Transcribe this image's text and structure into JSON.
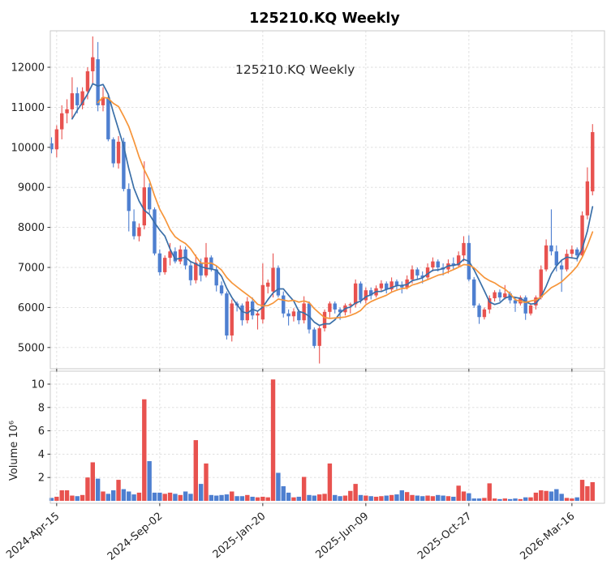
{
  "title": "125210.KQ  Weekly",
  "inner_label": "125210.KQ  Weekly",
  "colors": {
    "up_candle": "#e8524f",
    "down_candle": "#4e7fd0",
    "ma_fast": "#3a6fa8",
    "ma_slow": "#f6953a",
    "grid": "#dcdcdc",
    "spine": "#c9c9c9",
    "text": "#1f1f1f"
  },
  "chart_data": {
    "type": "candlestick",
    "title": "125210.KQ  Weekly",
    "panels": [
      "price",
      "volume"
    ],
    "price_axis": {
      "ticks": [
        5000,
        6000,
        7000,
        8000,
        9000,
        10000,
        11000,
        12000
      ],
      "range_est": [
        4470,
        12900
      ],
      "grid": true
    },
    "volume_axis": {
      "label": "Volume  10⁶",
      "ticks": [
        2,
        4,
        6,
        8,
        10
      ],
      "unit": "millions",
      "range_est": [
        0,
        11.3
      ],
      "grid": true
    },
    "x_ticks": [
      {
        "label": "2024-Apr-15",
        "index": 1
      },
      {
        "label": "2024-Sep-02",
        "index": 21
      },
      {
        "label": "2025-Jan-20",
        "index": 41
      },
      {
        "label": "2025-Jun-09",
        "index": 61
      },
      {
        "label": "2025-Oct-27",
        "index": 81
      },
      {
        "label": "2026-Mar-16",
        "index": 101
      }
    ],
    "overlays": [
      {
        "name": "ma-fast",
        "period": 5,
        "color_key": "ma_fast"
      },
      {
        "name": "ma-slow",
        "period": 10,
        "color_key": "ma_slow"
      }
    ],
    "ohlcv_columns": [
      "open",
      "high",
      "low",
      "close",
      "volume_millions"
    ],
    "candles": [
      [
        10100,
        10250,
        9850,
        9950,
        0.25
      ],
      [
        9950,
        10550,
        9750,
        10450,
        0.35
      ],
      [
        10450,
        11050,
        10200,
        10850,
        0.9
      ],
      [
        10850,
        11200,
        10600,
        10950,
        0.9
      ],
      [
        10950,
        11750,
        10700,
        11350,
        0.45
      ],
      [
        11350,
        11500,
        10850,
        11050,
        0.4
      ],
      [
        11050,
        11500,
        10950,
        11400,
        0.5
      ],
      [
        11400,
        12000,
        11200,
        11900,
        2.0
      ],
      [
        11900,
        12770,
        11600,
        12250,
        3.3
      ],
      [
        12200,
        12630,
        10900,
        11050,
        1.9
      ],
      [
        11050,
        11500,
        10900,
        11250,
        0.8
      ],
      [
        11250,
        11300,
        10150,
        10200,
        0.6
      ],
      [
        10200,
        10250,
        9500,
        9600,
        0.9
      ],
      [
        9600,
        10280,
        9470,
        10140,
        1.8
      ],
      [
        10140,
        10240,
        8900,
        8960,
        1.0
      ],
      [
        8960,
        9100,
        7900,
        8410,
        0.8
      ],
      [
        8150,
        8450,
        7700,
        7780,
        0.55
      ],
      [
        7780,
        8100,
        7650,
        8000,
        0.7
      ],
      [
        8050,
        9650,
        7950,
        9000,
        8.7
      ],
      [
        9000,
        9100,
        8350,
        8450,
        3.4
      ],
      [
        8450,
        8500,
        7300,
        7350,
        0.7
      ],
      [
        7350,
        7450,
        6800,
        6880,
        0.7
      ],
      [
        6880,
        7300,
        6820,
        7240,
        0.6
      ],
      [
        7240,
        7610,
        7050,
        7400,
        0.7
      ],
      [
        7400,
        7500,
        7100,
        7150,
        0.6
      ],
      [
        7150,
        7550,
        7080,
        7450,
        0.5
      ],
      [
        7450,
        7520,
        6950,
        7050,
        0.8
      ],
      [
        7050,
        7150,
        6550,
        6680,
        0.6
      ],
      [
        6680,
        7320,
        6600,
        7120,
        5.2
      ],
      [
        7120,
        7220,
        6650,
        6800,
        1.45
      ],
      [
        6800,
        7610,
        6750,
        7250,
        3.2
      ],
      [
        7250,
        7300,
        6900,
        6950,
        0.5
      ],
      [
        6950,
        7050,
        6400,
        6550,
        0.45
      ],
      [
        6550,
        6650,
        6300,
        6350,
        0.5
      ],
      [
        6350,
        6400,
        5200,
        5300,
        0.55
      ],
      [
        5300,
        6200,
        5150,
        6100,
        0.8
      ],
      [
        6100,
        6150,
        5900,
        6050,
        0.4
      ],
      [
        6050,
        6100,
        5550,
        5680,
        0.4
      ],
      [
        5680,
        6260,
        5600,
        6150,
        0.5
      ],
      [
        6150,
        6250,
        5700,
        5800,
        0.35
      ],
      [
        5800,
        5900,
        5450,
        5850,
        0.3
      ],
      [
        5700,
        7100,
        5600,
        6560,
        0.35
      ],
      [
        6520,
        6700,
        6350,
        6620,
        0.3
      ],
      [
        6400,
        7350,
        6250,
        6990,
        10.4
      ],
      [
        6990,
        7050,
        6250,
        6300,
        2.4
      ],
      [
        6300,
        6400,
        5750,
        5850,
        1.25
      ],
      [
        5850,
        5950,
        5550,
        5780,
        0.7
      ],
      [
        5780,
        5980,
        5650,
        5900,
        0.3
      ],
      [
        5900,
        5950,
        5580,
        5680,
        0.35
      ],
      [
        5680,
        6280,
        5600,
        6100,
        2.05
      ],
      [
        6100,
        6150,
        5350,
        5450,
        0.5
      ],
      [
        5450,
        5500,
        4980,
        5040,
        0.45
      ],
      [
        5040,
        5530,
        4600,
        5480,
        0.55
      ],
      [
        5480,
        5950,
        5400,
        5890,
        0.6
      ],
      [
        5890,
        6150,
        5750,
        6100,
        3.2
      ],
      [
        6100,
        6150,
        5850,
        5950,
        0.5
      ],
      [
        5950,
        6000,
        5690,
        5880,
        0.4
      ],
      [
        5880,
        6100,
        5800,
        6050,
        0.45
      ],
      [
        6050,
        6120,
        5850,
        6080,
        0.85
      ],
      [
        6080,
        6700,
        6000,
        6600,
        1.45
      ],
      [
        6600,
        6650,
        6100,
        6180,
        0.5
      ],
      [
        6180,
        6500,
        6100,
        6430,
        0.45
      ],
      [
        6430,
        6500,
        6200,
        6300,
        0.4
      ],
      [
        6300,
        6550,
        6250,
        6480,
        0.35
      ],
      [
        6480,
        6680,
        6380,
        6600,
        0.4
      ],
      [
        6600,
        6650,
        6350,
        6450,
        0.45
      ],
      [
        6450,
        6750,
        6400,
        6650,
        0.5
      ],
      [
        6650,
        6700,
        6450,
        6550,
        0.55
      ],
      [
        6550,
        6650,
        6350,
        6500,
        0.9
      ],
      [
        6500,
        6800,
        6450,
        6700,
        0.75
      ],
      [
        6700,
        7050,
        6600,
        6950,
        0.5
      ],
      [
        6950,
        7000,
        6700,
        6800,
        0.45
      ],
      [
        6800,
        6900,
        6600,
        6750,
        0.4
      ],
      [
        6750,
        7100,
        6700,
        7000,
        0.45
      ],
      [
        7000,
        7250,
        6900,
        7150,
        0.4
      ],
      [
        7150,
        7200,
        6900,
        7000,
        0.5
      ],
      [
        7000,
        7100,
        6800,
        6950,
        0.45
      ],
      [
        6950,
        7200,
        6850,
        7100,
        0.4
      ],
      [
        7100,
        7250,
        6950,
        7050,
        0.35
      ],
      [
        7050,
        7400,
        7000,
        7300,
        1.3
      ],
      [
        7300,
        7780,
        7150,
        7610,
        0.8
      ],
      [
        7610,
        7800,
        6650,
        6700,
        0.65
      ],
      [
        6700,
        6760,
        5990,
        6050,
        0.2
      ],
      [
        6050,
        6100,
        5590,
        5760,
        0.2
      ],
      [
        5760,
        6000,
        5700,
        5950,
        0.25
      ],
      [
        5950,
        6300,
        5850,
        6230,
        1.5
      ],
      [
        6230,
        6430,
        6150,
        6380,
        0.2
      ],
      [
        6380,
        6450,
        6150,
        6250,
        0.15
      ],
      [
        6250,
        6560,
        6200,
        6350,
        0.2
      ],
      [
        6350,
        6400,
        6100,
        6180,
        0.15
      ],
      [
        6180,
        6250,
        5890,
        6100,
        0.2
      ],
      [
        6100,
        6300,
        6050,
        6250,
        0.15
      ],
      [
        6250,
        6300,
        5690,
        5850,
        0.3
      ],
      [
        5850,
        6100,
        5800,
        6050,
        0.3
      ],
      [
        6050,
        6300,
        5950,
        6250,
        0.7
      ],
      [
        6250,
        7050,
        6200,
        6950,
        0.9
      ],
      [
        6950,
        7700,
        6900,
        7550,
        0.85
      ],
      [
        7550,
        8450,
        7300,
        7400,
        0.8
      ],
      [
        7400,
        7550,
        6900,
        7050,
        1.0
      ],
      [
        7050,
        7200,
        6390,
        6950,
        0.6
      ],
      [
        6950,
        7450,
        6900,
        7340,
        0.25
      ],
      [
        7340,
        7550,
        7250,
        7450,
        0.2
      ],
      [
        7450,
        7500,
        7150,
        7300,
        0.3
      ],
      [
        7300,
        8400,
        7250,
        8300,
        1.8
      ],
      [
        8300,
        9500,
        8200,
        9150,
        1.25
      ],
      [
        8900,
        10580,
        8800,
        10380,
        1.6
      ]
    ]
  }
}
